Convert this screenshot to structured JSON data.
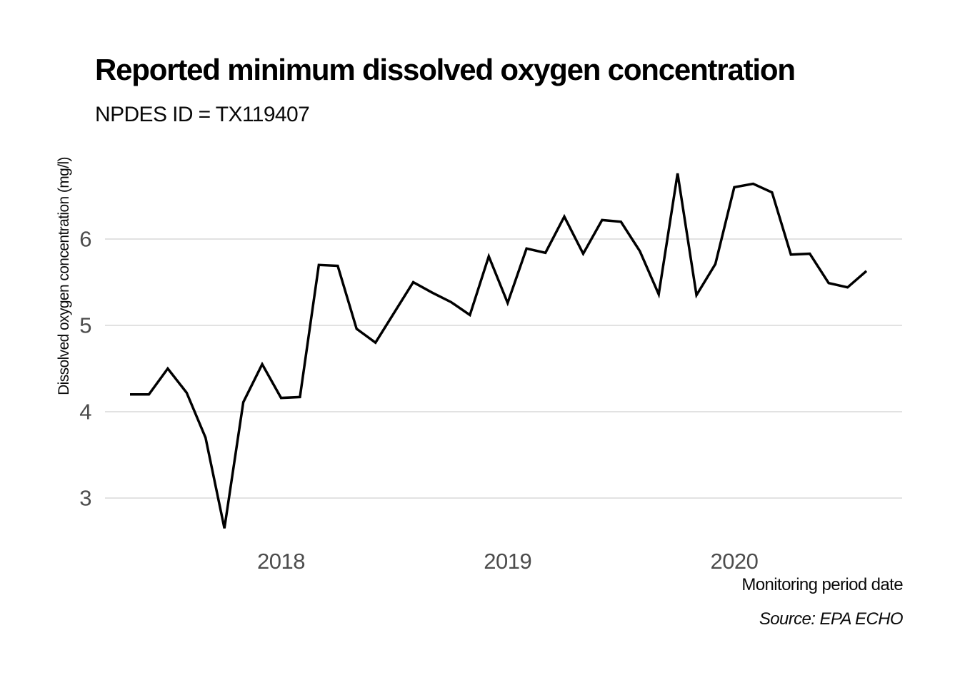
{
  "chart_data": {
    "type": "line",
    "title": "Reported minimum dissolved oxygen concentration",
    "subtitle": "NPDES ID = TX119407",
    "xlabel": "Monitoring period date",
    "ylabel": "Dissolved oxygen concentration (mg/l)",
    "source": "Source: EPA ECHO",
    "series_name": "Reported minimum dissolved oxygen concentration (mg/l)",
    "x": [
      "2017-05",
      "2017-06",
      "2017-07",
      "2017-08",
      "2017-09",
      "2017-10",
      "2017-11",
      "2017-12",
      "2018-01",
      "2018-02",
      "2018-03",
      "2018-04",
      "2018-05",
      "2018-06",
      "2018-07",
      "2018-08",
      "2018-09",
      "2018-10",
      "2018-11",
      "2018-12",
      "2019-01",
      "2019-02",
      "2019-03",
      "2019-04",
      "2019-05",
      "2019-06",
      "2019-07",
      "2019-08",
      "2019-09",
      "2019-10",
      "2019-11",
      "2019-12",
      "2020-01",
      "2020-02",
      "2020-03",
      "2020-04",
      "2020-05",
      "2020-06",
      "2020-07",
      "2020-08"
    ],
    "values": [
      4.2,
      4.2,
      4.5,
      4.22,
      3.7,
      2.65,
      4.11,
      4.55,
      4.16,
      4.17,
      5.7,
      5.69,
      4.96,
      4.8,
      5.15,
      5.5,
      5.38,
      5.27,
      5.12,
      5.8,
      5.26,
      5.89,
      5.84,
      6.26,
      5.83,
      6.22,
      6.2,
      5.86,
      5.36,
      6.76,
      5.35,
      5.71,
      6.6,
      6.64,
      6.54,
      5.82,
      5.83,
      5.49,
      5.44,
      5.63
    ],
    "yticks": [
      3,
      4,
      5,
      6
    ],
    "xticks": [
      "2018",
      "2019",
      "2020"
    ],
    "ylim": [
      2.44,
      6.96
    ],
    "grid": "horizontal-major-only",
    "legend": "none",
    "line_color": "#000000",
    "grid_color": "#e2e2e2",
    "tick_label_color": "#4d4d4d",
    "background_color": "#ffffff"
  }
}
